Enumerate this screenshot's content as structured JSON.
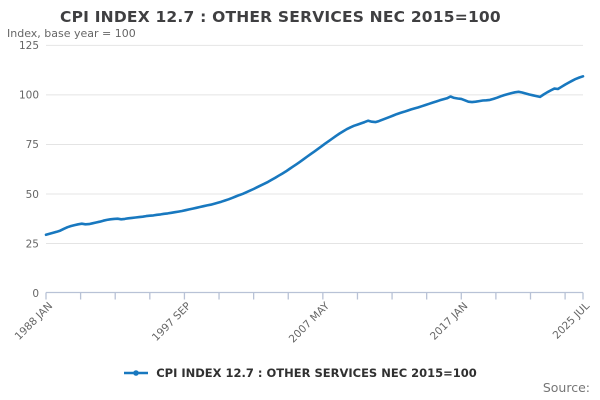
{
  "page": {
    "title": "CPI INDEX 12.7 : OTHER SERVICES NEC 2015=100",
    "subtitle": "Index, base year = 100",
    "source_label": "Source:"
  },
  "legend": {
    "label": "CPI INDEX 12.7 : OTHER SERVICES NEC 2015=100",
    "marker_icon": "line-dot-icon"
  },
  "colors": {
    "line": "#1878bf",
    "axis": "#b8c2d6",
    "grid": "#e4e4e4",
    "tick_label": "#666666"
  },
  "chart_data": {
    "type": "line",
    "title": "CPI INDEX 12.7 : OTHER SERVICES NEC 2015=100",
    "subtitle": "Index, base year = 100",
    "xlabel": "",
    "ylabel": "Index, base year = 100",
    "ylim": [
      0,
      125
    ],
    "y_ticks": [
      0,
      25,
      50,
      75,
      100,
      125
    ],
    "grid": true,
    "legend_position": "bottom",
    "x_total_months": 450,
    "x_minor_tick_months": [
      0,
      29,
      58,
      87,
      116,
      145,
      174,
      203,
      232,
      261,
      290,
      319,
      348,
      377,
      406,
      435,
      450
    ],
    "x_tick_label_months": [
      0,
      116,
      232,
      348,
      450
    ],
    "x_tick_labels": [
      "1988 JAN",
      "1997 SEP",
      "2007 MAY",
      "2017 JAN",
      "2025 JUL"
    ],
    "series": [
      {
        "name": "CPI INDEX 12.7 : OTHER SERVICES NEC 2015=100",
        "color": "#1878bf",
        "x_start": "1988 JAN",
        "x_end": "2025 JUL",
        "x_step_months": 3,
        "values": [
          29.4,
          29.9,
          30.4,
          30.9,
          31.5,
          32.4,
          33.2,
          33.8,
          34.3,
          34.7,
          35.0,
          34.7,
          34.8,
          35.2,
          35.6,
          36.0,
          36.5,
          36.9,
          37.2,
          37.4,
          37.5,
          37.2,
          37.4,
          37.7,
          37.9,
          38.1,
          38.3,
          38.5,
          38.8,
          39.0,
          39.2,
          39.5,
          39.7,
          40.0,
          40.2,
          40.5,
          40.8,
          41.1,
          41.4,
          41.8,
          42.2,
          42.6,
          43.0,
          43.4,
          43.8,
          44.2,
          44.6,
          45.1,
          45.6,
          46.1,
          46.7,
          47.3,
          48.0,
          48.7,
          49.4,
          50.1,
          50.9,
          51.7,
          52.5,
          53.4,
          54.3,
          55.2,
          56.1,
          57.1,
          58.1,
          59.2,
          60.3,
          61.4,
          62.6,
          63.8,
          65.0,
          66.3,
          67.6,
          68.9,
          70.2,
          71.5,
          72.8,
          74.1,
          75.4,
          76.7,
          78.0,
          79.3,
          80.5,
          81.6,
          82.7,
          83.6,
          84.4,
          85.0,
          85.6,
          86.3,
          87.0,
          86.5,
          86.3,
          86.8,
          87.5,
          88.2,
          88.9,
          89.6,
          90.3,
          90.9,
          91.5,
          92.1,
          92.7,
          93.2,
          93.7,
          94.3,
          94.9,
          95.5,
          96.1,
          96.7,
          97.3,
          97.8,
          98.3,
          99.2,
          98.5,
          98.2,
          98.0,
          97.3,
          96.6,
          96.4,
          96.6,
          96.9,
          97.2,
          97.3,
          97.5,
          98.0,
          98.6,
          99.3,
          99.9,
          100.4,
          100.9,
          101.3,
          101.6,
          101.2,
          100.7,
          100.2,
          99.8,
          99.4,
          99.0,
          100.2,
          101.3,
          102.3,
          103.2,
          103.0,
          104.1,
          105.2,
          106.2,
          107.2,
          108.1,
          108.8,
          109.4
        ]
      }
    ]
  }
}
